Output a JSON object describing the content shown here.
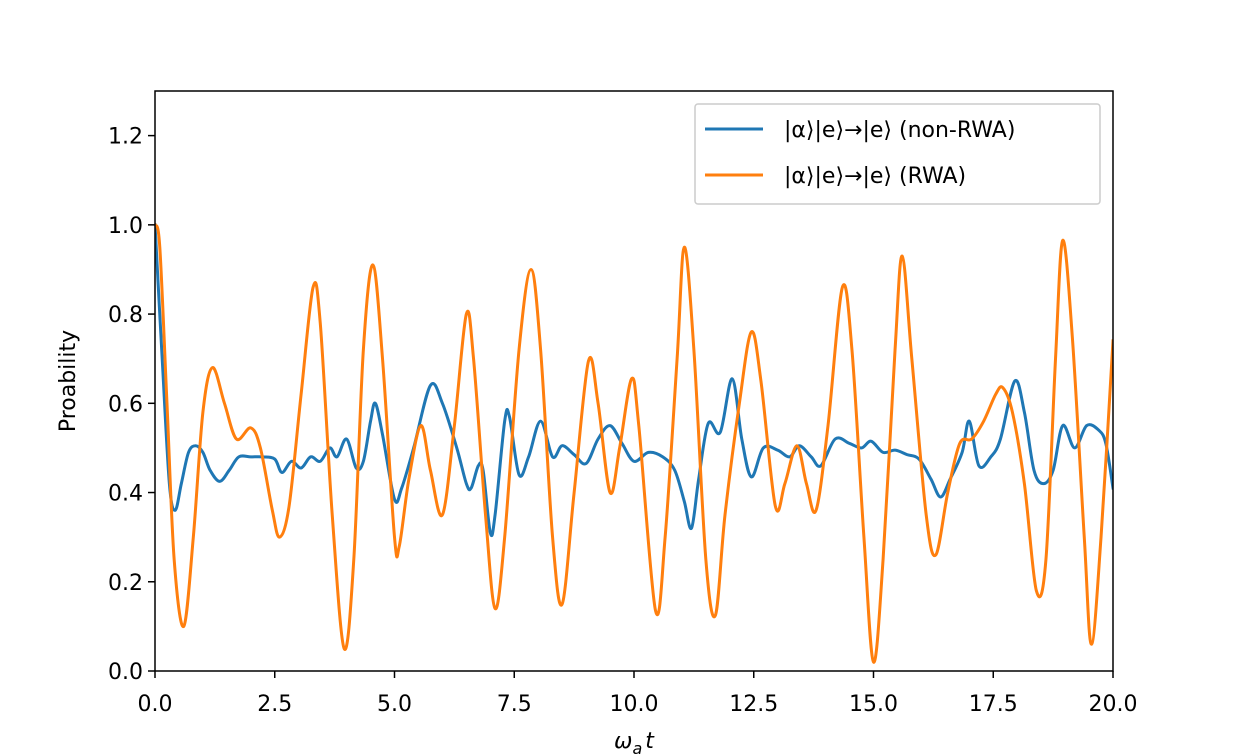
{
  "chart_data": {
    "type": "line",
    "title": "",
    "xlabel": "ω_a t",
    "xlabel_main": "ω",
    "xlabel_sub": "a",
    "xlabel_tail": "t",
    "ylabel": "Proability",
    "xlim": [
      0,
      20
    ],
    "ylim": [
      0,
      1.3
    ],
    "x_ticks": [
      0,
      2.5,
      5,
      7.5,
      10,
      12.5,
      15,
      17.5,
      20
    ],
    "x_tick_labels": [
      "0.0",
      "2.5",
      "5.0",
      "7.5",
      "10.0",
      "12.5",
      "15.0",
      "17.5",
      "20.0"
    ],
    "y_ticks": [
      0,
      0.2,
      0.4,
      0.6,
      0.8,
      1.0,
      1.2
    ],
    "y_tick_labels": [
      "0.0",
      "0.2",
      "0.4",
      "0.6",
      "0.8",
      "1.0",
      "1.2"
    ],
    "grid": false,
    "legend_position": "top-right",
    "series": [
      {
        "name": "|α⟩|e⟩→|e⟩ (non-RWA)",
        "color": "#1f77b4",
        "points": [
          [
            0,
            1.0
          ],
          [
            0.15,
            0.7
          ],
          [
            0.3,
            0.42
          ],
          [
            0.42,
            0.36
          ],
          [
            0.55,
            0.42
          ],
          [
            0.7,
            0.49
          ],
          [
            0.85,
            0.505
          ],
          [
            1.0,
            0.49
          ],
          [
            1.15,
            0.45
          ],
          [
            1.35,
            0.425
          ],
          [
            1.55,
            0.45
          ],
          [
            1.75,
            0.48
          ],
          [
            2.0,
            0.48
          ],
          [
            2.25,
            0.48
          ],
          [
            2.5,
            0.475
          ],
          [
            2.65,
            0.445
          ],
          [
            2.85,
            0.47
          ],
          [
            3.05,
            0.455
          ],
          [
            3.25,
            0.48
          ],
          [
            3.45,
            0.47
          ],
          [
            3.65,
            0.5
          ],
          [
            3.8,
            0.48
          ],
          [
            4.0,
            0.52
          ],
          [
            4.2,
            0.455
          ],
          [
            4.35,
            0.47
          ],
          [
            4.5,
            0.56
          ],
          [
            4.6,
            0.6
          ],
          [
            4.75,
            0.53
          ],
          [
            5.0,
            0.385
          ],
          [
            5.15,
            0.41
          ],
          [
            5.4,
            0.5
          ],
          [
            5.75,
            0.64
          ],
          [
            6.0,
            0.6
          ],
          [
            6.3,
            0.5
          ],
          [
            6.5,
            0.42
          ],
          [
            6.6,
            0.41
          ],
          [
            6.75,
            0.46
          ],
          [
            6.85,
            0.45
          ],
          [
            7.0,
            0.31
          ],
          [
            7.1,
            0.35
          ],
          [
            7.3,
            0.56
          ],
          [
            7.4,
            0.57
          ],
          [
            7.6,
            0.44
          ],
          [
            7.8,
            0.48
          ],
          [
            8.05,
            0.56
          ],
          [
            8.3,
            0.48
          ],
          [
            8.5,
            0.505
          ],
          [
            8.75,
            0.485
          ],
          [
            9.0,
            0.465
          ],
          [
            9.25,
            0.52
          ],
          [
            9.5,
            0.55
          ],
          [
            9.75,
            0.51
          ],
          [
            10.0,
            0.47
          ],
          [
            10.3,
            0.49
          ],
          [
            10.6,
            0.48
          ],
          [
            10.85,
            0.45
          ],
          [
            11.05,
            0.38
          ],
          [
            11.2,
            0.32
          ],
          [
            11.35,
            0.43
          ],
          [
            11.55,
            0.555
          ],
          [
            11.8,
            0.535
          ],
          [
            12.05,
            0.655
          ],
          [
            12.25,
            0.52
          ],
          [
            12.45,
            0.435
          ],
          [
            12.7,
            0.5
          ],
          [
            13.0,
            0.495
          ],
          [
            13.25,
            0.48
          ],
          [
            13.45,
            0.505
          ],
          [
            13.7,
            0.48
          ],
          [
            13.9,
            0.46
          ],
          [
            14.2,
            0.52
          ],
          [
            14.5,
            0.51
          ],
          [
            14.75,
            0.5
          ],
          [
            14.95,
            0.515
          ],
          [
            15.2,
            0.49
          ],
          [
            15.45,
            0.495
          ],
          [
            15.7,
            0.485
          ],
          [
            15.95,
            0.475
          ],
          [
            16.2,
            0.43
          ],
          [
            16.4,
            0.39
          ],
          [
            16.6,
            0.43
          ],
          [
            16.85,
            0.49
          ],
          [
            17.0,
            0.56
          ],
          [
            17.2,
            0.46
          ],
          [
            17.45,
            0.48
          ],
          [
            17.65,
            0.52
          ],
          [
            17.95,
            0.65
          ],
          [
            18.15,
            0.58
          ],
          [
            18.35,
            0.45
          ],
          [
            18.55,
            0.42
          ],
          [
            18.75,
            0.45
          ],
          [
            18.95,
            0.55
          ],
          [
            19.2,
            0.5
          ],
          [
            19.45,
            0.55
          ],
          [
            19.7,
            0.54
          ],
          [
            19.85,
            0.51
          ],
          [
            20.0,
            0.41
          ]
        ]
      },
      {
        "name": "|α⟩|e⟩→|e⟩ (RWA)",
        "color": "#ff7f0e",
        "points": [
          [
            0,
            1.0
          ],
          [
            0.1,
            0.95
          ],
          [
            0.25,
            0.6
          ],
          [
            0.4,
            0.25
          ],
          [
            0.6,
            0.1
          ],
          [
            0.8,
            0.3
          ],
          [
            1.0,
            0.58
          ],
          [
            1.2,
            0.68
          ],
          [
            1.45,
            0.6
          ],
          [
            1.7,
            0.52
          ],
          [
            2.0,
            0.545
          ],
          [
            2.2,
            0.5
          ],
          [
            2.45,
            0.36
          ],
          [
            2.6,
            0.3
          ],
          [
            2.8,
            0.37
          ],
          [
            3.05,
            0.62
          ],
          [
            3.3,
            0.86
          ],
          [
            3.45,
            0.78
          ],
          [
            3.7,
            0.35
          ],
          [
            3.95,
            0.05
          ],
          [
            4.15,
            0.25
          ],
          [
            4.35,
            0.72
          ],
          [
            4.55,
            0.91
          ],
          [
            4.75,
            0.7
          ],
          [
            5.0,
            0.3
          ],
          [
            5.1,
            0.28
          ],
          [
            5.3,
            0.43
          ],
          [
            5.55,
            0.55
          ],
          [
            5.75,
            0.45
          ],
          [
            6.0,
            0.35
          ],
          [
            6.25,
            0.55
          ],
          [
            6.5,
            0.8
          ],
          [
            6.65,
            0.7
          ],
          [
            6.9,
            0.35
          ],
          [
            7.1,
            0.14
          ],
          [
            7.3,
            0.3
          ],
          [
            7.6,
            0.72
          ],
          [
            7.85,
            0.9
          ],
          [
            8.05,
            0.72
          ],
          [
            8.3,
            0.3
          ],
          [
            8.5,
            0.15
          ],
          [
            8.75,
            0.4
          ],
          [
            9.05,
            0.695
          ],
          [
            9.25,
            0.6
          ],
          [
            9.5,
            0.4
          ],
          [
            9.7,
            0.5
          ],
          [
            9.95,
            0.655
          ],
          [
            10.1,
            0.55
          ],
          [
            10.45,
            0.135
          ],
          [
            10.65,
            0.3
          ],
          [
            10.9,
            0.7
          ],
          [
            11.05,
            0.95
          ],
          [
            11.25,
            0.72
          ],
          [
            11.5,
            0.25
          ],
          [
            11.7,
            0.125
          ],
          [
            11.9,
            0.35
          ],
          [
            12.2,
            0.6
          ],
          [
            12.45,
            0.76
          ],
          [
            12.65,
            0.65
          ],
          [
            12.95,
            0.37
          ],
          [
            13.15,
            0.42
          ],
          [
            13.4,
            0.505
          ],
          [
            13.6,
            0.42
          ],
          [
            13.8,
            0.36
          ],
          [
            14.05,
            0.55
          ],
          [
            14.35,
            0.86
          ],
          [
            14.55,
            0.72
          ],
          [
            14.8,
            0.3
          ],
          [
            15.0,
            0.02
          ],
          [
            15.2,
            0.25
          ],
          [
            15.45,
            0.72
          ],
          [
            15.6,
            0.93
          ],
          [
            15.8,
            0.7
          ],
          [
            16.1,
            0.35
          ],
          [
            16.3,
            0.26
          ],
          [
            16.55,
            0.4
          ],
          [
            16.8,
            0.51
          ],
          [
            17.05,
            0.52
          ],
          [
            17.3,
            0.56
          ],
          [
            17.55,
            0.62
          ],
          [
            17.7,
            0.635
          ],
          [
            17.9,
            0.58
          ],
          [
            18.15,
            0.42
          ],
          [
            18.4,
            0.18
          ],
          [
            18.6,
            0.25
          ],
          [
            18.8,
            0.7
          ],
          [
            18.95,
            0.965
          ],
          [
            19.15,
            0.75
          ],
          [
            19.4,
            0.3
          ],
          [
            19.55,
            0.06
          ],
          [
            19.75,
            0.3
          ],
          [
            20.0,
            0.74
          ]
        ]
      }
    ]
  }
}
